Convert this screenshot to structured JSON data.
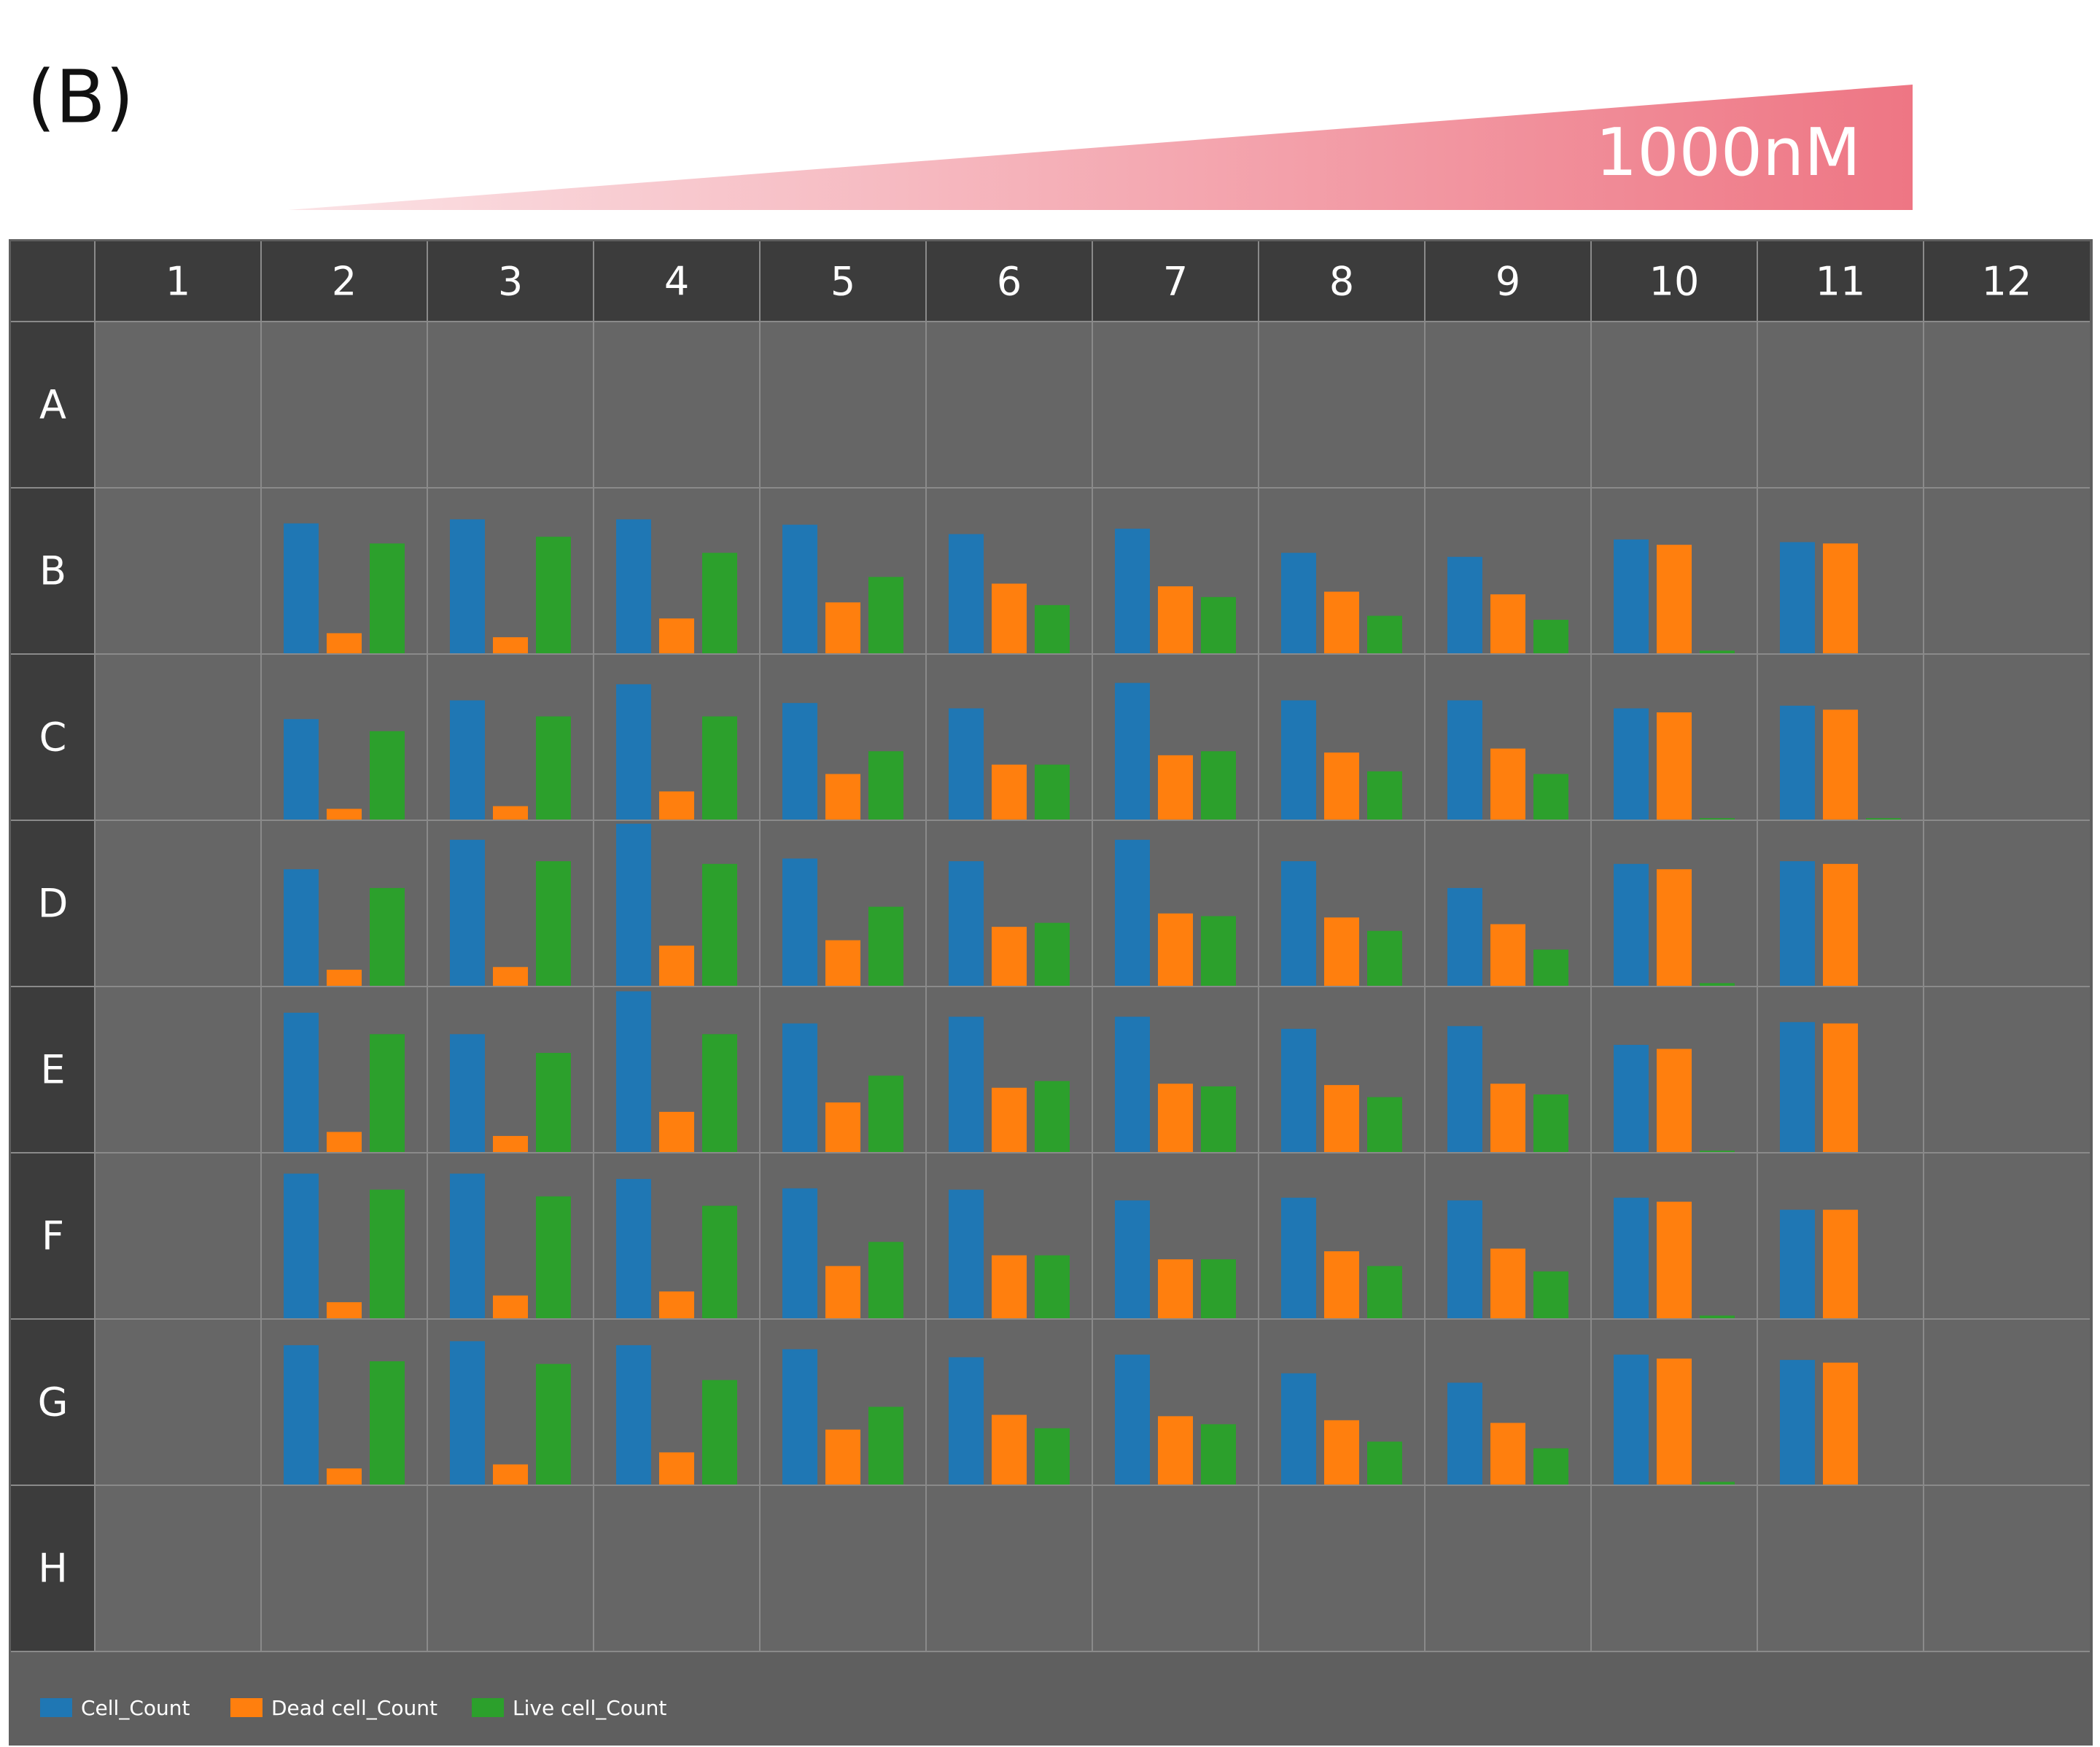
{
  "chart_data": {
    "type": "plate_bar",
    "panel_label": "(B)",
    "concentration_label": "1000nM",
    "columns": [
      "1",
      "2",
      "3",
      "4",
      "5",
      "6",
      "7",
      "8",
      "9",
      "10",
      "11",
      "12"
    ],
    "rows": [
      "A",
      "B",
      "C",
      "D",
      "E",
      "F",
      "G",
      "H"
    ],
    "series": [
      {
        "name": "Cell_Count",
        "color": "#1f77b4",
        "values": [
          [
            null,
            null,
            null,
            null,
            null,
            null,
            null,
            null,
            null,
            null,
            null,
            null
          ],
          [
            null,
            97,
            100,
            100,
            96,
            89,
            93,
            75,
            72,
            85,
            83,
            null
          ],
          [
            null,
            75,
            89,
            101,
            87,
            83,
            102,
            89,
            89,
            83,
            85,
            null
          ],
          [
            null,
            87,
            109,
            121,
            95,
            93,
            109,
            93,
            73,
            91,
            93,
            null
          ],
          [
            null,
            104,
            88,
            120,
            96,
            101,
            101,
            92,
            94,
            80,
            97,
            null
          ],
          [
            null,
            108,
            108,
            104,
            97,
            96,
            88,
            90,
            88,
            90,
            81,
            null
          ],
          [
            null,
            104,
            107,
            104,
            101,
            95,
            97,
            83,
            76,
            97,
            93,
            null
          ],
          [
            null,
            null,
            null,
            null,
            null,
            null,
            null,
            null,
            null,
            null,
            null,
            null
          ]
        ]
      },
      {
        "name": "Dead cell_Count",
        "color": "#ff7f0e",
        "values": [
          [
            null,
            null,
            null,
            null,
            null,
            null,
            null,
            null,
            null,
            null,
            null,
            null
          ],
          [
            null,
            15,
            12,
            26,
            38,
            52,
            50,
            46,
            44,
            81,
            82,
            null
          ],
          [
            null,
            8,
            10,
            21,
            34,
            41,
            48,
            50,
            53,
            80,
            82,
            null
          ],
          [
            null,
            12,
            14,
            30,
            34,
            44,
            54,
            51,
            46,
            87,
            91,
            null
          ],
          [
            null,
            15,
            12,
            30,
            37,
            48,
            51,
            50,
            51,
            77,
            96,
            null
          ],
          [
            null,
            12,
            17,
            20,
            39,
            47,
            44,
            50,
            52,
            87,
            81,
            null
          ],
          [
            null,
            12,
            15,
            24,
            41,
            52,
            51,
            48,
            46,
            94,
            91,
            null
          ],
          [
            null,
            null,
            null,
            null,
            null,
            null,
            null,
            null,
            null,
            null,
            null,
            null
          ]
        ]
      },
      {
        "name": "Live cell_Count",
        "color": "#2ca02c",
        "values": [
          [
            null,
            null,
            null,
            null,
            null,
            null,
            null,
            null,
            null,
            null,
            null,
            null
          ],
          [
            null,
            82,
            87,
            75,
            57,
            36,
            42,
            28,
            25,
            2,
            0,
            null
          ],
          [
            null,
            66,
            77,
            77,
            51,
            41,
            51,
            36,
            34,
            1,
            1,
            null
          ],
          [
            null,
            73,
            93,
            91,
            59,
            47,
            52,
            41,
            27,
            2,
            0,
            null
          ],
          [
            null,
            88,
            74,
            88,
            57,
            53,
            49,
            41,
            43,
            1,
            0,
            null
          ],
          [
            null,
            96,
            91,
            84,
            57,
            47,
            44,
            39,
            35,
            2,
            0,
            null
          ],
          [
            null,
            92,
            90,
            78,
            58,
            42,
            45,
            32,
            27,
            2,
            0,
            null
          ],
          [
            null,
            null,
            null,
            null,
            null,
            null,
            null,
            null,
            null,
            null,
            null,
            null
          ]
        ]
      }
    ]
  }
}
